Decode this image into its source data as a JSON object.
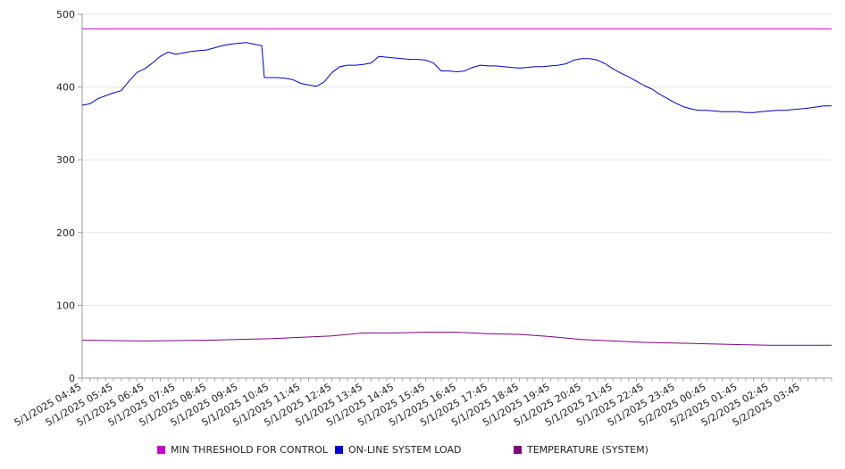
{
  "chart_data": {
    "type": "line",
    "title": "",
    "xlabel": "",
    "ylabel": "",
    "ylim": [
      0,
      500
    ],
    "y_ticks": [
      0,
      100,
      200,
      300,
      400,
      500
    ],
    "x_ticks": [
      "5/1/2025 04:45",
      "5/1/2025 05:45",
      "5/1/2025 06:45",
      "5/1/2025 07:45",
      "5/1/2025 08:45",
      "5/1/2025 09:45",
      "5/1/2025 10:45",
      "5/1/2025 11:45",
      "5/1/2025 12:45",
      "5/1/2025 13:45",
      "5/1/2025 14:45",
      "5/1/2025 15:45",
      "5/1/2025 16:45",
      "5/1/2025 17:45",
      "5/1/2025 18:45",
      "5/1/2025 19:45",
      "5/1/2025 20:45",
      "5/1/2025 21:45",
      "5/1/2025 22:45",
      "5/1/2025 23:45",
      "5/2/2025 00:45",
      "5/2/2025 01:45",
      "5/2/2025 02:45",
      "5/2/2025 03:45"
    ],
    "x_range": [
      "5/1/2025 04:45",
      "5/2/2025 04:45"
    ],
    "grid": "horizontal",
    "legend_position": "bottom",
    "series": [
      {
        "name": "MIN THRESHOLD FOR CONTROL",
        "color": "#cc00cc",
        "points": [
          [
            "5/1/2025 04:45",
            480
          ],
          [
            "5/2/2025 04:45",
            480
          ]
        ]
      },
      {
        "name": "ON-LINE SYSTEM LOAD",
        "color": "#0000cc",
        "points": [
          [
            "5/1/2025 04:45",
            375
          ],
          [
            "5/1/2025 05:00",
            377
          ],
          [
            "5/1/2025 05:15",
            384
          ],
          [
            "5/1/2025 05:30",
            388
          ],
          [
            "5/1/2025 05:45",
            392
          ],
          [
            "5/1/2025 06:00",
            395
          ],
          [
            "5/1/2025 06:15",
            408
          ],
          [
            "5/1/2025 06:30",
            420
          ],
          [
            "5/1/2025 06:45",
            425
          ],
          [
            "5/1/2025 07:00",
            433
          ],
          [
            "5/1/2025 07:15",
            442
          ],
          [
            "5/1/2025 07:30",
            448
          ],
          [
            "5/1/2025 07:45",
            445
          ],
          [
            "5/1/2025 08:00",
            447
          ],
          [
            "5/1/2025 08:15",
            449
          ],
          [
            "5/1/2025 08:30",
            450
          ],
          [
            "5/1/2025 08:45",
            451
          ],
          [
            "5/1/2025 09:00",
            454
          ],
          [
            "5/1/2025 09:15",
            457
          ],
          [
            "5/1/2025 09:30",
            459
          ],
          [
            "5/1/2025 09:45",
            460
          ],
          [
            "5/1/2025 10:00",
            461
          ],
          [
            "5/1/2025 10:15",
            459
          ],
          [
            "5/1/2025 10:30",
            457
          ],
          [
            "5/1/2025 10:35",
            413
          ],
          [
            "5/1/2025 10:45",
            413
          ],
          [
            "5/1/2025 11:00",
            413
          ],
          [
            "5/1/2025 11:15",
            412
          ],
          [
            "5/1/2025 11:30",
            410
          ],
          [
            "5/1/2025 11:45",
            405
          ],
          [
            "5/1/2025 12:00",
            403
          ],
          [
            "5/1/2025 12:15",
            401
          ],
          [
            "5/1/2025 12:30",
            407
          ],
          [
            "5/1/2025 12:45",
            420
          ],
          [
            "5/1/2025 13:00",
            428
          ],
          [
            "5/1/2025 13:15",
            430
          ],
          [
            "5/1/2025 13:30",
            430
          ],
          [
            "5/1/2025 13:45",
            431
          ],
          [
            "5/1/2025 14:00",
            433
          ],
          [
            "5/1/2025 14:15",
            442
          ],
          [
            "5/1/2025 14:30",
            441
          ],
          [
            "5/1/2025 14:45",
            440
          ],
          [
            "5/1/2025 15:00",
            439
          ],
          [
            "5/1/2025 15:15",
            438
          ],
          [
            "5/1/2025 15:30",
            438
          ],
          [
            "5/1/2025 15:45",
            437
          ],
          [
            "5/1/2025 16:00",
            433
          ],
          [
            "5/1/2025 16:15",
            422
          ],
          [
            "5/1/2025 16:30",
            422
          ],
          [
            "5/1/2025 16:45",
            421
          ],
          [
            "5/1/2025 17:00",
            422
          ],
          [
            "5/1/2025 17:15",
            427
          ],
          [
            "5/1/2025 17:30",
            430
          ],
          [
            "5/1/2025 17:45",
            429
          ],
          [
            "5/1/2025 18:00",
            429
          ],
          [
            "5/1/2025 18:15",
            428
          ],
          [
            "5/1/2025 18:30",
            427
          ],
          [
            "5/1/2025 18:45",
            426
          ],
          [
            "5/1/2025 19:00",
            427
          ],
          [
            "5/1/2025 19:15",
            428
          ],
          [
            "5/1/2025 19:30",
            428
          ],
          [
            "5/1/2025 19:45",
            429
          ],
          [
            "5/1/2025 20:00",
            430
          ],
          [
            "5/1/2025 20:15",
            432
          ],
          [
            "5/1/2025 20:30",
            437
          ],
          [
            "5/1/2025 20:45",
            439
          ],
          [
            "5/1/2025 21:00",
            439
          ],
          [
            "5/1/2025 21:15",
            437
          ],
          [
            "5/1/2025 21:30",
            432
          ],
          [
            "5/1/2025 21:45",
            425
          ],
          [
            "5/1/2025 22:00",
            419
          ],
          [
            "5/1/2025 22:15",
            414
          ],
          [
            "5/1/2025 22:30",
            408
          ],
          [
            "5/1/2025 22:45",
            402
          ],
          [
            "5/1/2025 23:00",
            397
          ],
          [
            "5/1/2025 23:15",
            390
          ],
          [
            "5/1/2025 23:30",
            384
          ],
          [
            "5/1/2025 23:45",
            378
          ],
          [
            "5/2/2025 00:00",
            373
          ],
          [
            "5/2/2025 00:15",
            370
          ],
          [
            "5/2/2025 00:30",
            368
          ],
          [
            "5/2/2025 00:45",
            368
          ],
          [
            "5/2/2025 01:00",
            367
          ],
          [
            "5/2/2025 01:15",
            366
          ],
          [
            "5/2/2025 01:30",
            366
          ],
          [
            "5/2/2025 01:45",
            366
          ],
          [
            "5/2/2025 02:00",
            365
          ],
          [
            "5/2/2025 02:15",
            365
          ],
          [
            "5/2/2025 02:30",
            366
          ],
          [
            "5/2/2025 02:45",
            367
          ],
          [
            "5/2/2025 03:00",
            368
          ],
          [
            "5/2/2025 03:15",
            368
          ],
          [
            "5/2/2025 03:30",
            369
          ],
          [
            "5/2/2025 03:45",
            370
          ],
          [
            "5/2/2025 04:00",
            371
          ],
          [
            "5/2/2025 04:30",
            374
          ],
          [
            "5/2/2025 04:45",
            374
          ]
        ]
      },
      {
        "name": "TEMPERATURE (SYSTEM)",
        "color": "#800080",
        "points": [
          [
            "5/1/2025 04:45",
            52
          ],
          [
            "5/1/2025 06:45",
            51
          ],
          [
            "5/1/2025 08:45",
            52
          ],
          [
            "5/1/2025 10:45",
            54
          ],
          [
            "5/1/2025 12:45",
            58
          ],
          [
            "5/1/2025 13:45",
            62
          ],
          [
            "5/1/2025 14:45",
            62
          ],
          [
            "5/1/2025 15:45",
            63
          ],
          [
            "5/1/2025 16:45",
            63
          ],
          [
            "5/1/2025 17:45",
            61
          ],
          [
            "5/1/2025 18:45",
            60
          ],
          [
            "5/1/2025 19:45",
            57
          ],
          [
            "5/1/2025 20:45",
            53
          ],
          [
            "5/1/2025 21:45",
            51
          ],
          [
            "5/1/2025 22:45",
            49
          ],
          [
            "5/1/2025 23:45",
            48
          ],
          [
            "5/2/2025 00:45",
            47
          ],
          [
            "5/2/2025 01:45",
            46
          ],
          [
            "5/2/2025 02:45",
            45
          ],
          [
            "5/2/2025 04:45",
            45
          ]
        ]
      }
    ]
  }
}
